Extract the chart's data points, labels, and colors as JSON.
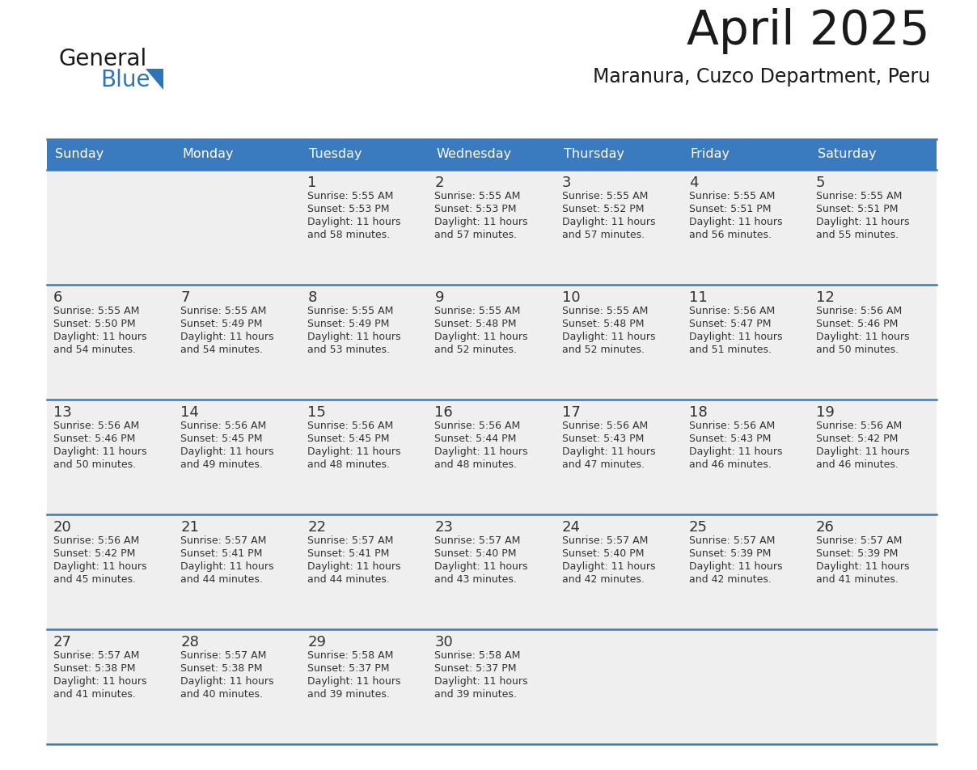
{
  "title": "April 2025",
  "subtitle": "Maranura, Cuzco Department, Peru",
  "header_bg": "#3a7abf",
  "header_text_color": "#ffffff",
  "cell_bg": "#efefef",
  "border_color": "#3a7abf",
  "text_color": "#333333",
  "days_of_week": [
    "Sunday",
    "Monday",
    "Tuesday",
    "Wednesday",
    "Thursday",
    "Friday",
    "Saturday"
  ],
  "weeks": [
    [
      {
        "day": "",
        "sunrise": "",
        "sunset": "",
        "daylight": ""
      },
      {
        "day": "",
        "sunrise": "",
        "sunset": "",
        "daylight": ""
      },
      {
        "day": "1",
        "sunrise": "5:55 AM",
        "sunset": "5:53 PM",
        "minutes": "and 58 minutes."
      },
      {
        "day": "2",
        "sunrise": "5:55 AM",
        "sunset": "5:53 PM",
        "minutes": "and 57 minutes."
      },
      {
        "day": "3",
        "sunrise": "5:55 AM",
        "sunset": "5:52 PM",
        "minutes": "and 57 minutes."
      },
      {
        "day": "4",
        "sunrise": "5:55 AM",
        "sunset": "5:51 PM",
        "minutes": "and 56 minutes."
      },
      {
        "day": "5",
        "sunrise": "5:55 AM",
        "sunset": "5:51 PM",
        "minutes": "and 55 minutes."
      }
    ],
    [
      {
        "day": "6",
        "sunrise": "5:55 AM",
        "sunset": "5:50 PM",
        "minutes": "and 54 minutes."
      },
      {
        "day": "7",
        "sunrise": "5:55 AM",
        "sunset": "5:49 PM",
        "minutes": "and 54 minutes."
      },
      {
        "day": "8",
        "sunrise": "5:55 AM",
        "sunset": "5:49 PM",
        "minutes": "and 53 minutes."
      },
      {
        "day": "9",
        "sunrise": "5:55 AM",
        "sunset": "5:48 PM",
        "minutes": "and 52 minutes."
      },
      {
        "day": "10",
        "sunrise": "5:55 AM",
        "sunset": "5:48 PM",
        "minutes": "and 52 minutes."
      },
      {
        "day": "11",
        "sunrise": "5:56 AM",
        "sunset": "5:47 PM",
        "minutes": "and 51 minutes."
      },
      {
        "day": "12",
        "sunrise": "5:56 AM",
        "sunset": "5:46 PM",
        "minutes": "and 50 minutes."
      }
    ],
    [
      {
        "day": "13",
        "sunrise": "5:56 AM",
        "sunset": "5:46 PM",
        "minutes": "and 50 minutes."
      },
      {
        "day": "14",
        "sunrise": "5:56 AM",
        "sunset": "5:45 PM",
        "minutes": "and 49 minutes."
      },
      {
        "day": "15",
        "sunrise": "5:56 AM",
        "sunset": "5:45 PM",
        "minutes": "and 48 minutes."
      },
      {
        "day": "16",
        "sunrise": "5:56 AM",
        "sunset": "5:44 PM",
        "minutes": "and 48 minutes."
      },
      {
        "day": "17",
        "sunrise": "5:56 AM",
        "sunset": "5:43 PM",
        "minutes": "and 47 minutes."
      },
      {
        "day": "18",
        "sunrise": "5:56 AM",
        "sunset": "5:43 PM",
        "minutes": "and 46 minutes."
      },
      {
        "day": "19",
        "sunrise": "5:56 AM",
        "sunset": "5:42 PM",
        "minutes": "and 46 minutes."
      }
    ],
    [
      {
        "day": "20",
        "sunrise": "5:56 AM",
        "sunset": "5:42 PM",
        "minutes": "and 45 minutes."
      },
      {
        "day": "21",
        "sunrise": "5:57 AM",
        "sunset": "5:41 PM",
        "minutes": "and 44 minutes."
      },
      {
        "day": "22",
        "sunrise": "5:57 AM",
        "sunset": "5:41 PM",
        "minutes": "and 44 minutes."
      },
      {
        "day": "23",
        "sunrise": "5:57 AM",
        "sunset": "5:40 PM",
        "minutes": "and 43 minutes."
      },
      {
        "day": "24",
        "sunrise": "5:57 AM",
        "sunset": "5:40 PM",
        "minutes": "and 42 minutes."
      },
      {
        "day": "25",
        "sunrise": "5:57 AM",
        "sunset": "5:39 PM",
        "minutes": "and 42 minutes."
      },
      {
        "day": "26",
        "sunrise": "5:57 AM",
        "sunset": "5:39 PM",
        "minutes": "and 41 minutes."
      }
    ],
    [
      {
        "day": "27",
        "sunrise": "5:57 AM",
        "sunset": "5:38 PM",
        "minutes": "and 41 minutes."
      },
      {
        "day": "28",
        "sunrise": "5:57 AM",
        "sunset": "5:38 PM",
        "minutes": "and 40 minutes."
      },
      {
        "day": "29",
        "sunrise": "5:58 AM",
        "sunset": "5:37 PM",
        "minutes": "and 39 minutes."
      },
      {
        "day": "30",
        "sunrise": "5:58 AM",
        "sunset": "5:37 PM",
        "minutes": "and 39 minutes."
      },
      {
        "day": "",
        "sunrise": "",
        "sunset": "",
        "minutes": ""
      },
      {
        "day": "",
        "sunrise": "",
        "sunset": "",
        "minutes": ""
      },
      {
        "day": "",
        "sunrise": "",
        "sunset": "",
        "minutes": ""
      }
    ]
  ],
  "logo_general_color": "#1a1a1a",
  "logo_blue_color": "#2e75b6",
  "logo_triangle_color": "#2e75b6",
  "title_color": "#1a1a1a",
  "subtitle_color": "#1a1a1a"
}
